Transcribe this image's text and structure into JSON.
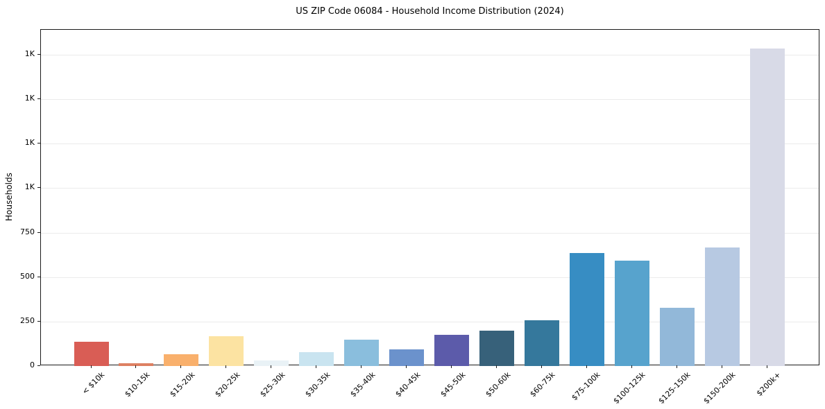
{
  "chart_data": {
    "type": "bar",
    "title": "US ZIP Code 06084 - Household Income Distribution (2024)",
    "xlabel": "",
    "ylabel": "Households",
    "categories": [
      "< $10k",
      "$10-15k",
      "$15-20k",
      "$20-25k",
      "$25-30k",
      "$30-35k",
      "$35-40k",
      "$40-45k",
      "$45-50k",
      "$50-60k",
      "$60-75k",
      "$75-100k",
      "$100-125k",
      "$125-150k",
      "$150-200k",
      "$200k+"
    ],
    "values": [
      137,
      17,
      67,
      168,
      30,
      77,
      150,
      95,
      175,
      197,
      256,
      635,
      593,
      327,
      665,
      1786
    ],
    "bar_colors": [
      "#d95d55",
      "#dd8062",
      "#f9b06c",
      "#fce3a2",
      "#e9f2f6",
      "#c9e4f0",
      "#8abedd",
      "#6b92cc",
      "#5c5baa",
      "#37617a",
      "#35789c",
      "#378dc3",
      "#57a3cd",
      "#92b8d9",
      "#b7c9e2",
      "#d8dae7"
    ],
    "ylim": [
      0,
      1890
    ],
    "yticks": [
      {
        "value": 0,
        "label": "0"
      },
      {
        "value": 250,
        "label": "250"
      },
      {
        "value": 500,
        "label": "500"
      },
      {
        "value": 750,
        "label": "750"
      },
      {
        "value": 1000,
        "label": "1K"
      },
      {
        "value": 1250,
        "label": "1K"
      },
      {
        "value": 1500,
        "label": "1K"
      },
      {
        "value": 1750,
        "label": "1K"
      }
    ],
    "grid": "horizontal",
    "grid_color": "#ebebeb",
    "legend": "none",
    "xtick_rotation_deg": 45,
    "background_color": "#ffffff",
    "frame_color": "#1a1a1a"
  }
}
